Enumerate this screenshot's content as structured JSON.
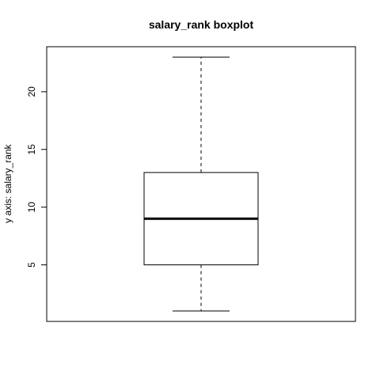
{
  "chart_data": {
    "type": "boxplot",
    "title": "salary_rank boxplot",
    "xlabel": "",
    "ylabel": "y axis: salary_rank",
    "ylim": [
      0.1,
      23.9
    ],
    "y_ticks": [
      5,
      10,
      15,
      20
    ],
    "grid": false,
    "box": {
      "min": 1,
      "q1": 5,
      "median": 9,
      "q3": 13,
      "max": 23
    },
    "colors": {
      "box_fill": "#ffffff",
      "stroke": "#000000"
    }
  }
}
